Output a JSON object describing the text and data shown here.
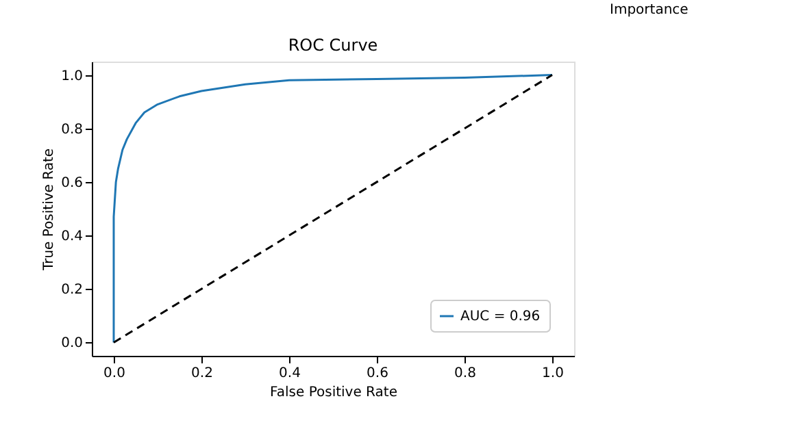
{
  "chart_data": {
    "type": "line",
    "title": "ROC Curve",
    "xlabel": "False Positive Rate",
    "ylabel": "True Positive Rate",
    "annotations": [
      "Importance"
    ],
    "xlim": [
      -0.05,
      1.05
    ],
    "ylim": [
      -0.05,
      1.05
    ],
    "xticks": [
      {
        "value": 0,
        "label": "0.0"
      },
      {
        "value": 0.2,
        "label": "0.2"
      },
      {
        "value": 0.4,
        "label": "0.4"
      },
      {
        "value": 0.6,
        "label": "0.6"
      },
      {
        "value": 0.8,
        "label": "0.8"
      },
      {
        "value": 1,
        "label": "1.0"
      }
    ],
    "yticks": [
      {
        "value": 0,
        "label": "0.0"
      },
      {
        "value": 0.2,
        "label": "0.2"
      },
      {
        "value": 0.4,
        "label": "0.4"
      },
      {
        "value": 0.6,
        "label": "0.6"
      },
      {
        "value": 0.8,
        "label": "0.8"
      },
      {
        "value": 1,
        "label": "1.0"
      }
    ],
    "grid": false,
    "legend": "bottom right",
    "marker": "none",
    "series": [
      {
        "name": "AUC = 0.96",
        "color": "#1f77b4",
        "line_style": "solid",
        "x": [
          0,
          0,
          0.005,
          0.01,
          0.02,
          0.03,
          0.05,
          0.07,
          0.1,
          0.15,
          0.2,
          0.3,
          0.4,
          0.6,
          0.8,
          1
        ],
        "values": [
          0,
          0.47,
          0.6,
          0.65,
          0.72,
          0.76,
          0.82,
          0.86,
          0.89,
          0.92,
          0.94,
          0.965,
          0.98,
          0.985,
          0.99,
          1
        ]
      },
      {
        "color": "#000000",
        "line_style": "dashed",
        "x": [
          0,
          1
        ],
        "values": [
          0,
          1
        ]
      }
    ]
  }
}
